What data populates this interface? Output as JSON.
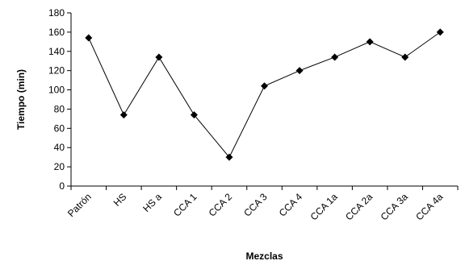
{
  "chart_data": {
    "type": "line",
    "title": "",
    "xlabel": "Mezclas",
    "ylabel": "Tiempo (min)",
    "ylim": [
      0,
      180
    ],
    "y_ticks": [
      0,
      20,
      40,
      60,
      80,
      100,
      120,
      140,
      160,
      180
    ],
    "grid": false,
    "legend": "none",
    "categories": [
      "Patrón",
      "HS",
      "HS a",
      "CCA 1",
      "CCA 2",
      "CCA 3",
      "CCA 4",
      "CCA 1a",
      "CCA 2a",
      "CCA 3a",
      "CCA 4a"
    ],
    "series": [
      {
        "values": [
          154,
          74,
          134,
          74,
          30,
          104,
          120,
          134,
          150,
          134,
          160
        ],
        "color": "#000000",
        "marker": "diamond"
      }
    ]
  }
}
